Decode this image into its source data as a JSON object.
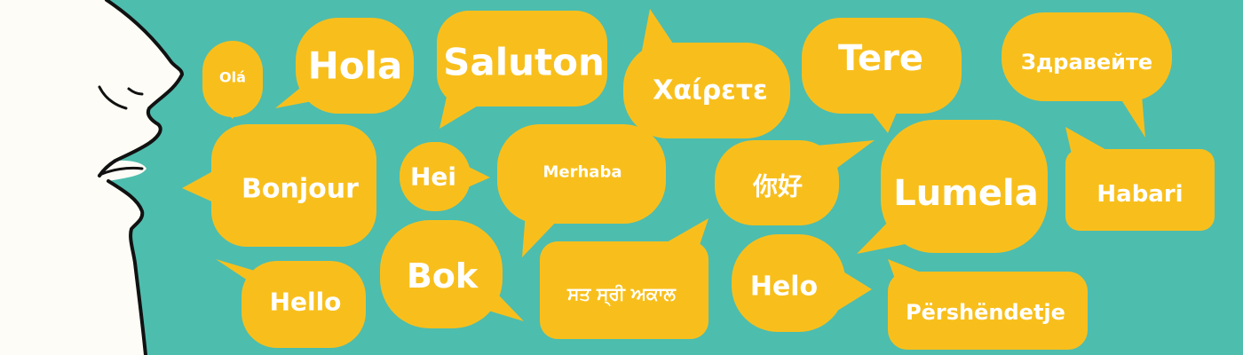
{
  "colors": {
    "background": "#4dbdae",
    "bubble": "#f8bf1c",
    "text": "#ffffff",
    "face": "#fdfcf6",
    "outline": "#111111"
  },
  "greetings": [
    {
      "id": "ola",
      "text": "Olá"
    },
    {
      "id": "hola",
      "text": "Hola"
    },
    {
      "id": "saluton",
      "text": "Saluton"
    },
    {
      "id": "chairete",
      "text": "Χαίρετε"
    },
    {
      "id": "tere",
      "text": "Tere"
    },
    {
      "id": "zdraveyte",
      "text": "Здравейте"
    },
    {
      "id": "bonjour",
      "text": "Bonjour"
    },
    {
      "id": "hei",
      "text": "Hei"
    },
    {
      "id": "merhaba",
      "text": "Merhaba"
    },
    {
      "id": "nihao",
      "text": "你好"
    },
    {
      "id": "lumela",
      "text": "Lumela"
    },
    {
      "id": "habari",
      "text": "Habari"
    },
    {
      "id": "hello",
      "text": "Hello"
    },
    {
      "id": "bok",
      "text": "Bok"
    },
    {
      "id": "sat-sri-akal",
      "text": "ਸਤ ਸ੍ਰੀ ਅਕਾਲ"
    },
    {
      "id": "helo",
      "text": "Helo"
    },
    {
      "id": "pershendetje",
      "text": "Përshëndetje"
    }
  ]
}
